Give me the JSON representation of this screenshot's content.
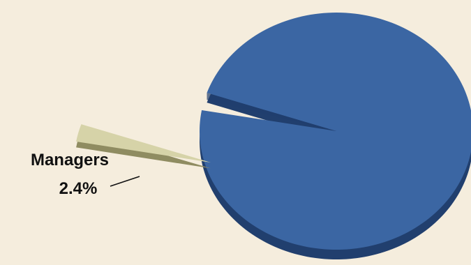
{
  "chart_data": {
    "type": "pie",
    "title": "",
    "slices": [
      {
        "label": "Managers",
        "value": 2.4,
        "value_label": "2.4%",
        "exploded": true,
        "labeled": true
      },
      {
        "label": "",
        "value": 97.6,
        "value_label": "",
        "exploded": false,
        "labeled": false
      }
    ],
    "legend": "none",
    "style": "3d-tilted"
  },
  "colors": {
    "background": "#f5eddd",
    "main_slice": "#3b66a3",
    "main_slice_shadow": "#213f6e",
    "highlight_slice": "#d6d3a8",
    "highlight_slice_shadow": "#8f8c61",
    "leader_line": "#111111"
  }
}
